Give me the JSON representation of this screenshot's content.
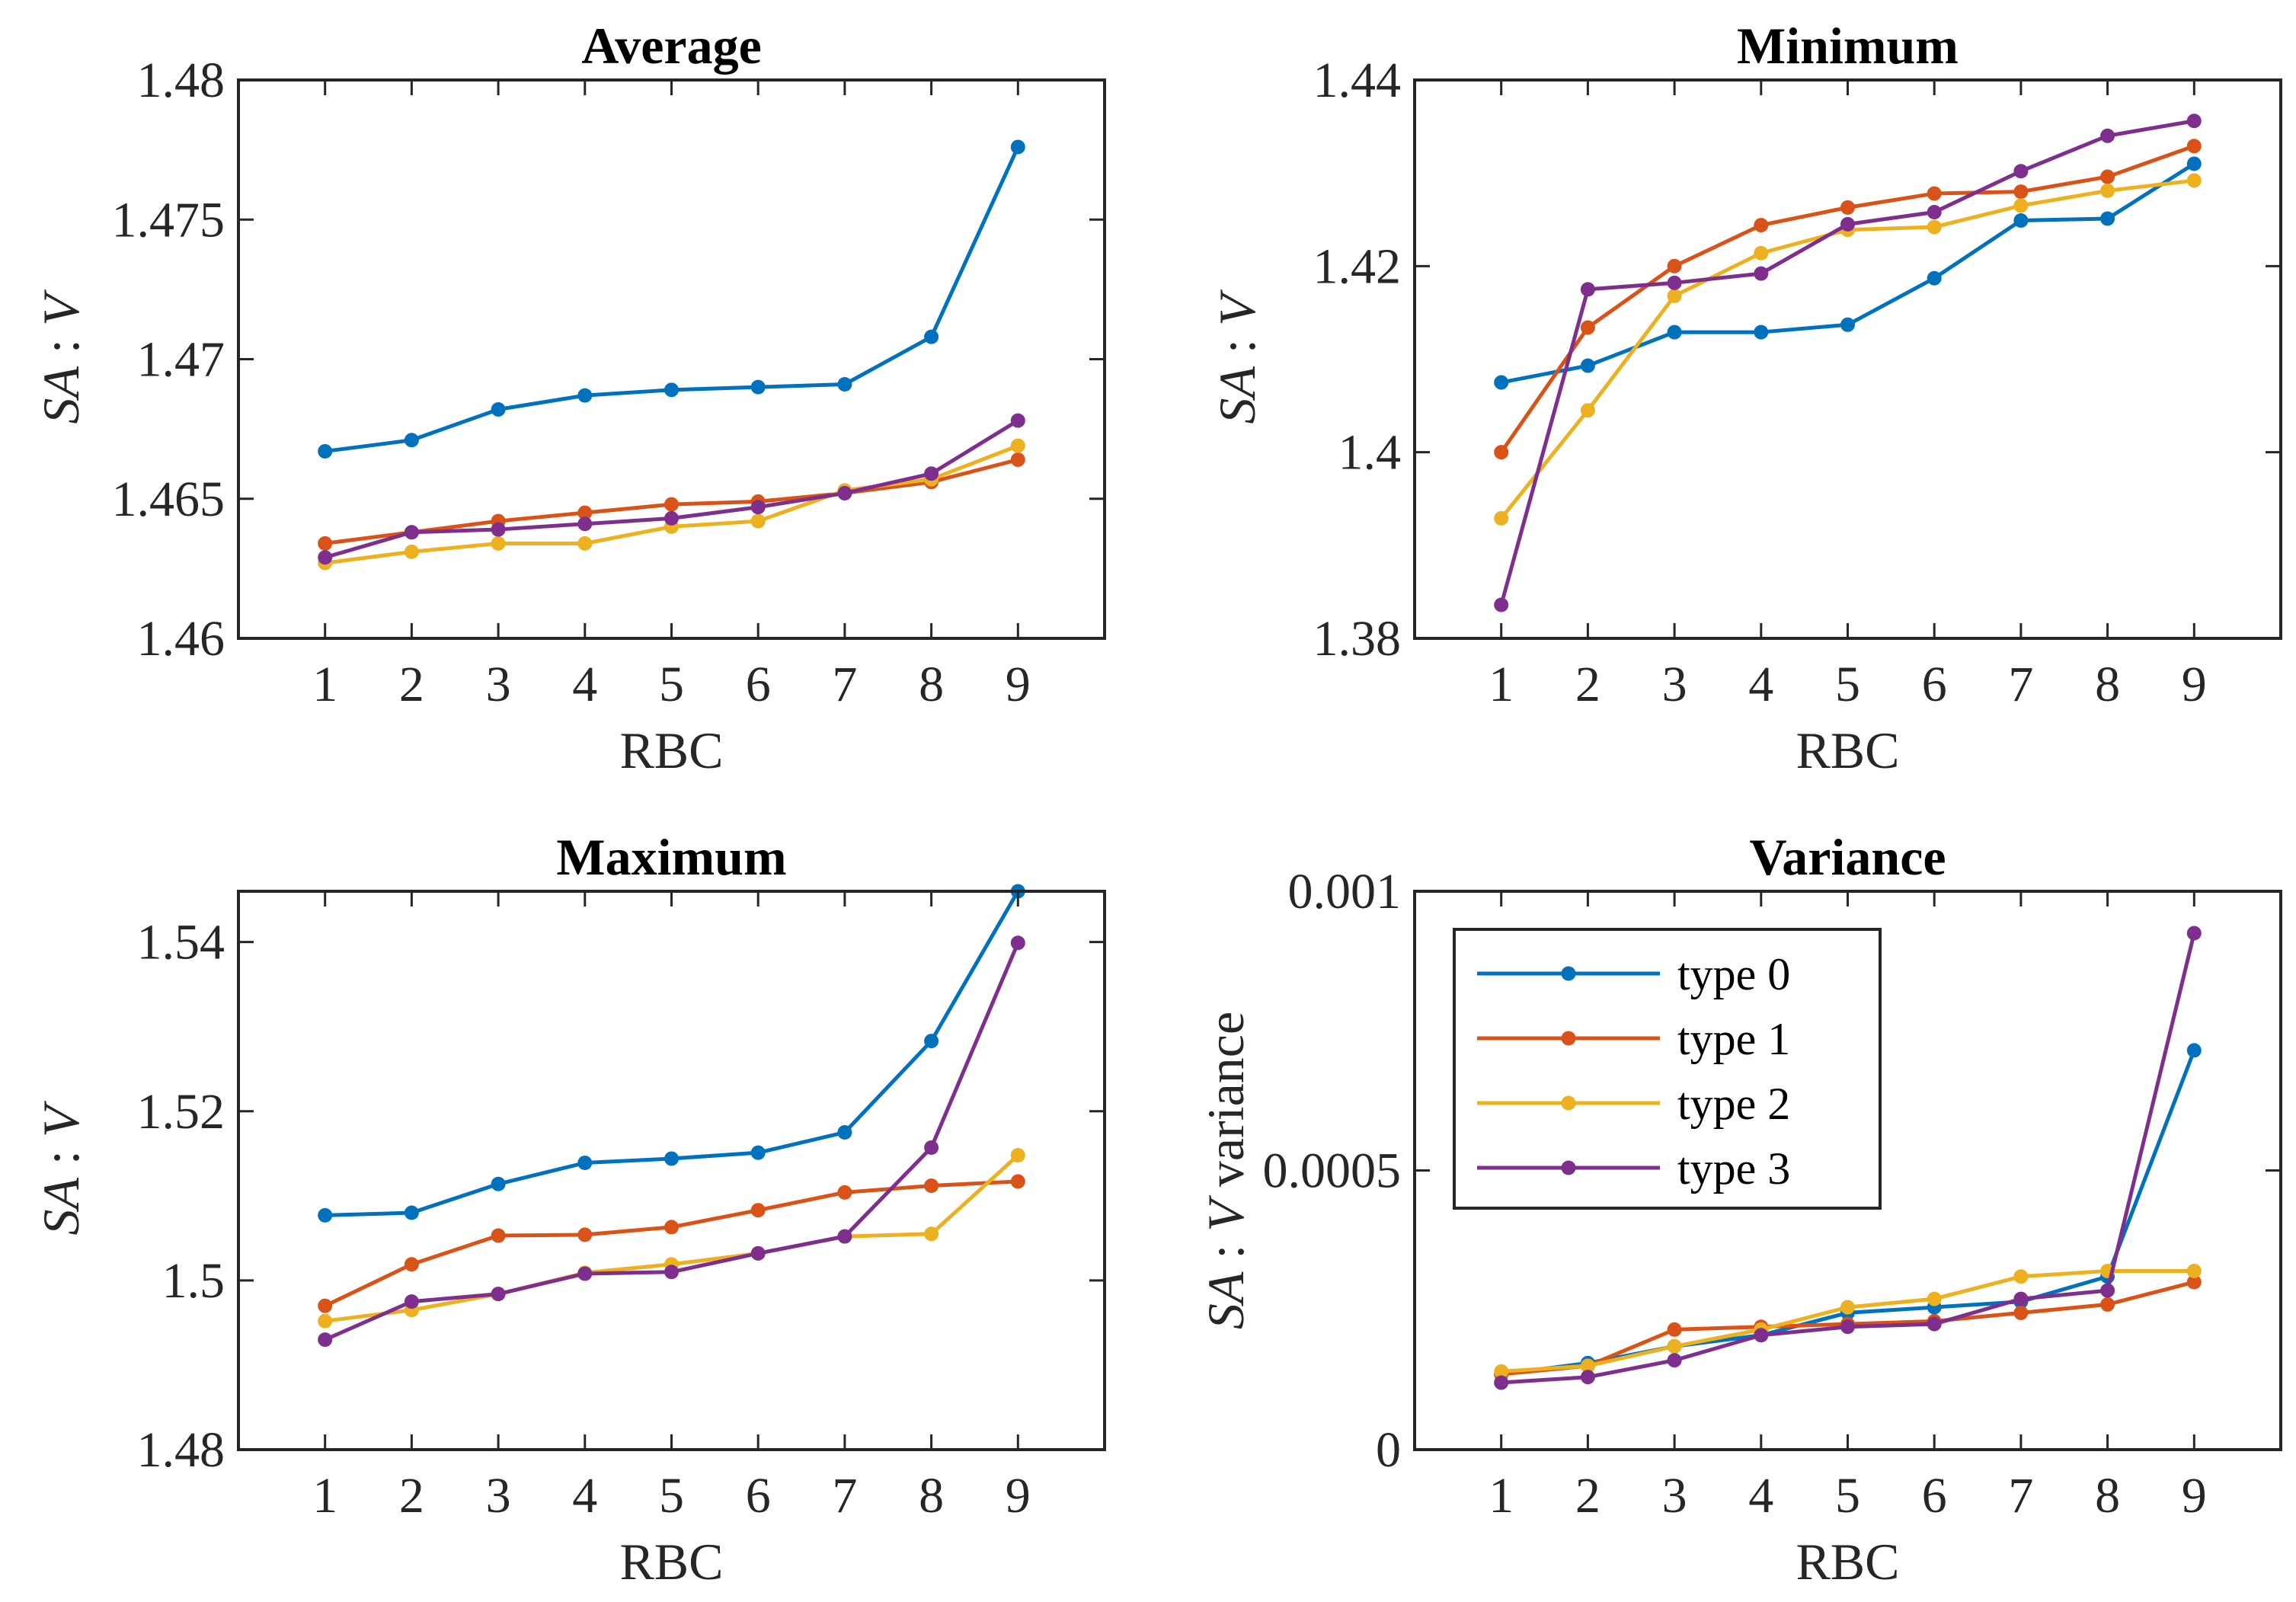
{
  "legend_labels": [
    "type 0",
    "type 1",
    "type 2",
    "type 3"
  ],
  "colors": [
    "#0072BD",
    "#D95319",
    "#EDB120",
    "#7E2F8E"
  ],
  "chart_data": [
    {
      "type": "line",
      "title": "Average",
      "xlabel": "RBC",
      "ylabel_italic": "SA",
      "ylabel_sep": " : ",
      "ylabel_italic2": "V",
      "ylabel_suffix": "",
      "x": [
        1,
        2,
        3,
        4,
        5,
        6,
        7,
        8,
        9
      ],
      "xlim": [
        0,
        10
      ],
      "ylim": [
        1.46,
        1.48
      ],
      "xticks": [
        1,
        2,
        3,
        4,
        5,
        6,
        7,
        8,
        9
      ],
      "yticks": [
        1.46,
        1.465,
        1.47,
        1.475,
        1.48
      ],
      "ytick_labels": [
        "1.46",
        "1.465",
        "1.47",
        "1.475",
        "1.48"
      ],
      "series": [
        {
          "name": "type 0",
          "values": [
            1.4667,
            1.4671,
            1.4682,
            1.4687,
            1.4689,
            1.469,
            1.4691,
            1.4708,
            1.4776
          ]
        },
        {
          "name": "type 1",
          "values": [
            1.4634,
            1.4638,
            1.4642,
            1.4645,
            1.4648,
            1.4649,
            1.4652,
            1.4656,
            1.4664
          ]
        },
        {
          "name": "type 2",
          "values": [
            1.4627,
            1.4631,
            1.4634,
            1.4634,
            1.464,
            1.4642,
            1.4653,
            1.4657,
            1.4669
          ]
        },
        {
          "name": "type 3",
          "values": [
            1.4629,
            1.4638,
            1.4639,
            1.4641,
            1.4643,
            1.4647,
            1.4652,
            1.4659,
            1.4678
          ]
        }
      ]
    },
    {
      "type": "line",
      "title": "Minimum",
      "xlabel": "RBC",
      "ylabel_italic": "SA",
      "ylabel_sep": " : ",
      "ylabel_italic2": "V",
      "ylabel_suffix": "",
      "x": [
        1,
        2,
        3,
        4,
        5,
        6,
        7,
        8,
        9
      ],
      "xlim": [
        0,
        10
      ],
      "ylim": [
        1.38,
        1.44
      ],
      "xticks": [
        1,
        2,
        3,
        4,
        5,
        6,
        7,
        8,
        9
      ],
      "yticks": [
        1.38,
        1.4,
        1.42,
        1.44
      ],
      "ytick_labels": [
        "1.38",
        "1.4",
        "1.42",
        "1.44"
      ],
      "series": [
        {
          "name": "type 0",
          "values": [
            1.4075,
            1.4093,
            1.4129,
            1.4129,
            1.4137,
            1.4187,
            1.4249,
            1.4251,
            1.431
          ]
        },
        {
          "name": "type 1",
          "values": [
            1.4,
            1.4134,
            1.42,
            1.4244,
            1.4263,
            1.4278,
            1.428,
            1.4296,
            1.4329
          ]
        },
        {
          "name": "type 2",
          "values": [
            1.3929,
            1.4045,
            1.4168,
            1.4214,
            1.4239,
            1.4242,
            1.4265,
            1.4281,
            1.4292
          ]
        },
        {
          "name": "type 3",
          "values": [
            1.3836,
            1.4175,
            1.4182,
            1.4192,
            1.4245,
            1.4258,
            1.4302,
            1.434,
            1.4356
          ]
        }
      ]
    },
    {
      "type": "line",
      "title": "Maximum",
      "xlabel": "RBC",
      "ylabel_italic": "SA",
      "ylabel_sep": " : ",
      "ylabel_italic2": "V",
      "ylabel_suffix": "",
      "x": [
        1,
        2,
        3,
        4,
        5,
        6,
        7,
        8,
        9
      ],
      "xlim": [
        0,
        10
      ],
      "ylim": [
        1.48,
        1.546
      ],
      "xticks": [
        1,
        2,
        3,
        4,
        5,
        6,
        7,
        8,
        9
      ],
      "yticks": [
        1.48,
        1.5,
        1.52,
        1.54
      ],
      "ytick_labels": [
        "1.48",
        "1.5",
        "1.52",
        "1.54"
      ],
      "series": [
        {
          "name": "type 0",
          "values": [
            1.5077,
            1.508,
            1.5114,
            1.5139,
            1.5144,
            1.5151,
            1.5175,
            1.5283,
            1.546
          ]
        },
        {
          "name": "type 1",
          "values": [
            1.497,
            1.5019,
            1.5053,
            1.5054,
            1.5063,
            1.5083,
            1.5104,
            1.5112,
            1.5117
          ]
        },
        {
          "name": "type 2",
          "values": [
            1.4952,
            1.4965,
            1.4984,
            1.5009,
            1.5019,
            1.5032,
            1.5052,
            1.5055,
            1.5148
          ]
        },
        {
          "name": "type 3",
          "values": [
            1.493,
            1.4975,
            1.4984,
            1.5008,
            1.501,
            1.5032,
            1.5052,
            1.5157,
            1.5399
          ]
        }
      ]
    },
    {
      "type": "line",
      "title": "Variance",
      "xlabel": "RBC",
      "ylabel_italic": "SA",
      "ylabel_sep": " : ",
      "ylabel_italic2": "V",
      "ylabel_suffix": " variance",
      "x": [
        1,
        2,
        3,
        4,
        5,
        6,
        7,
        8,
        9
      ],
      "xlim": [
        0,
        10
      ],
      "ylim": [
        0,
        0.001
      ],
      "xticks": [
        1,
        2,
        3,
        4,
        5,
        6,
        7,
        8,
        9
      ],
      "yticks": [
        0,
        0.0005,
        0.001
      ],
      "ytick_labels": [
        "0",
        "0.0005",
        "0.001"
      ],
      "legend": "top-left",
      "series": [
        {
          "name": "type 0",
          "values": [
            0.000135,
            0.000155,
            0.000185,
            0.000205,
            0.000245,
            0.000255,
            0.000265,
            0.00031,
            0.000715
          ]
        },
        {
          "name": "type 1",
          "values": [
            0.000135,
            0.00015,
            0.000215,
            0.00022,
            0.000225,
            0.00023,
            0.000245,
            0.00026,
            0.0003
          ]
        },
        {
          "name": "type 2",
          "values": [
            0.00014,
            0.00015,
            0.000185,
            0.000215,
            0.000255,
            0.00027,
            0.00031,
            0.00032,
            0.00032
          ]
        },
        {
          "name": "type 3",
          "values": [
            0.00012,
            0.00013,
            0.00016,
            0.000205,
            0.00022,
            0.000225,
            0.00027,
            0.000285,
            0.000925
          ]
        }
      ]
    }
  ]
}
